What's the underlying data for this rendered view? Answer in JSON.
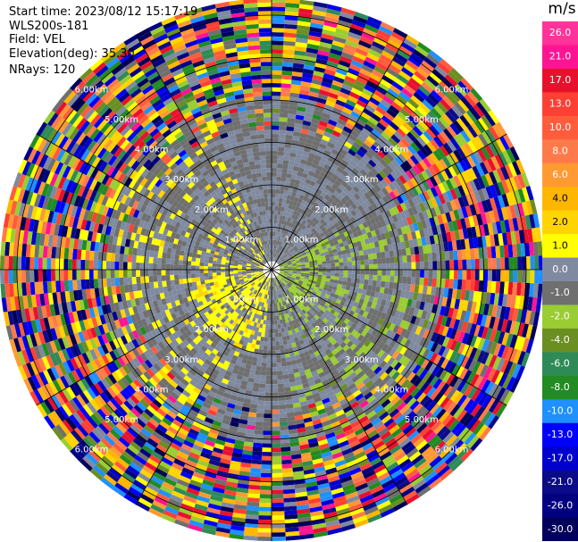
{
  "info": {
    "start_time": "Start time: 2023/08/12 15:17:19",
    "instrument": "WLS200s-181",
    "field": "Field: VEL",
    "elevation": "Elevation(deg): 35.30",
    "nrays": "NRays: 120"
  },
  "colorbar": {
    "unit": "m/s",
    "ticks": [
      "26.0",
      "21.0",
      "17.0",
      "13.0",
      "10.0",
      "8.0",
      "6.0",
      "4.0",
      "2.0",
      "1.0",
      "0.0",
      "-1.0",
      "-2.0",
      "-4.0",
      "-6.0",
      "-8.0",
      "-10.0",
      "-13.0",
      "-17.0",
      "-21.0",
      "-26.0",
      "-30.0"
    ],
    "colors": [
      "#ff3399",
      "#ff1493",
      "#e8112d",
      "#ff3f34",
      "#ff5c3c",
      "#ff7a4a",
      "#ff9a33",
      "#ffb600",
      "#ffd400",
      "#ffff00",
      "#7f8aa0",
      "#6f6f6f",
      "#9acd32",
      "#6b8e23",
      "#2e8b57",
      "#228b22",
      "#1e90ff",
      "#0000ff",
      "#0000cd",
      "#0b0b8a",
      "#000080",
      "#00005a"
    ]
  },
  "chart_data": {
    "type": "ppi",
    "field": "VEL",
    "unit": "m/s",
    "vmin": -30.0,
    "vmax": 30.0,
    "nrays": 120,
    "elevation_deg": 35.3,
    "range_rings_km": [
      1.0,
      2.0,
      3.0,
      4.0,
      5.0,
      6.0
    ],
    "ring_labels": [
      "1.00km",
      "2.00km",
      "3.00km",
      "4.00km",
      "5.00km",
      "6.00km"
    ],
    "spokes_deg": [
      0,
      30,
      60,
      90,
      120,
      150,
      180,
      210,
      240,
      270,
      300,
      330
    ],
    "max_range_km": 6.4,
    "velocity_regions": [
      {
        "description": "near-zero gray band",
        "min": -1.0,
        "max": 1.0
      },
      {
        "description": "west and south-west sector",
        "min": 2.0,
        "max": 6.0
      },
      {
        "description": "east and south-east sector",
        "min": -6.0,
        "max": -2.0
      },
      {
        "description": "outer ranges",
        "min": -30.0,
        "max": 26.0
      }
    ]
  }
}
